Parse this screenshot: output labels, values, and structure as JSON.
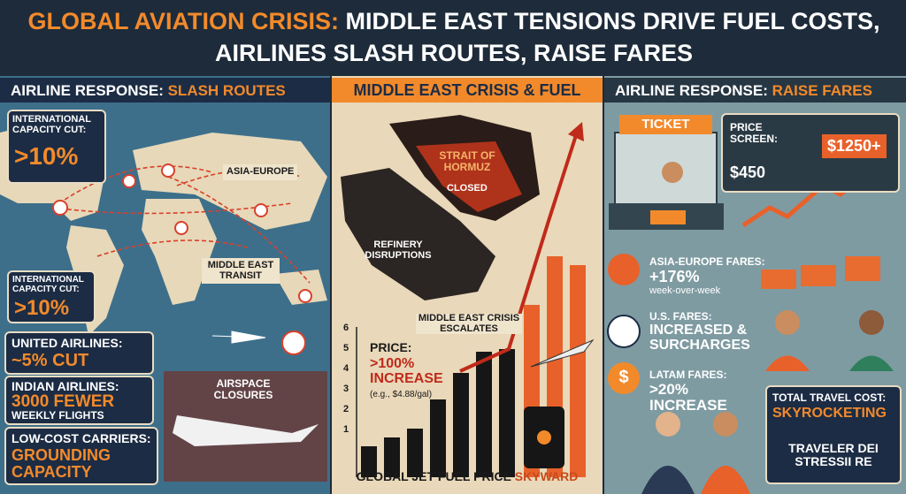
{
  "title": {
    "highlight": "GLOBAL AVIATION CRISIS:",
    "rest": "MIDDLE EAST TENSIONS DRIVE FUEL COSTS, AIRLINES SLASH ROUTES, RAISE FARES"
  },
  "left": {
    "header_lead": "AIRLINE RESPONSE:",
    "header_accent": "SLASH ROUTES",
    "callouts": [
      {
        "label": "INTERNATIONAL CAPACITY CUT:",
        "value": ">10%"
      },
      {
        "label": "INTERNATIONAL CAPACITY CUT:",
        "value": ">10%"
      },
      {
        "label": "UNITED AIRLINES:",
        "value": "~5% CUT"
      },
      {
        "label": "INDIAN AIRLINES:",
        "value": "3000 FEWER",
        "note": "WEEKLY FLIGHTS"
      },
      {
        "label": "LOW-COST CARRIERS:",
        "value": "GROUNDING CAPACITY"
      }
    ],
    "map_labels": [
      "ASIA-EUROPE",
      "MIDDLE EAST TRANSIT",
      "AIRSPACE CLOSURES"
    ]
  },
  "middle": {
    "header": "MIDDLE EAST CRISIS & FUEL",
    "strait": "STRAIT OF HORMUZ",
    "closed": "CLOSED",
    "refinery": "REFINERY DISRUPTIONS",
    "escalates": "MIDDLE EAST CRISIS ESCALATES",
    "price_label": "PRICE:",
    "price_value": ">100% INCREASE",
    "price_example": "(e.g., $4.88/gal)",
    "axis_labels": [
      "6",
      "5",
      "4",
      "3",
      "2",
      "1"
    ],
    "footer_lead": "GLOBAL JET FUEL PRICE",
    "footer_accent": "SKYWARD"
  },
  "right": {
    "header_lead": "AIRLINE RESPONSE:",
    "header_accent": "RAISE FARES",
    "ticket": "TICKET",
    "screen_label": "PRICE SCREEN:",
    "old_price": "$450",
    "new_price": "$1250+",
    "fares": [
      {
        "label": "ASIA-EUROPE FARES:",
        "value": "+176%",
        "note": "week-over-week"
      },
      {
        "label": "U.S. FARES:",
        "value": "INCREASED & SURCHARGES"
      },
      {
        "label": "LATAM FARES:",
        "value": ">20% INCREASE"
      }
    ],
    "latam_icon": "$",
    "total_label": "TOTAL TRAVEL COST:",
    "total_value": "SKYROCKETING",
    "demand": "TRAVELER DEI STRESSII RE"
  }
}
